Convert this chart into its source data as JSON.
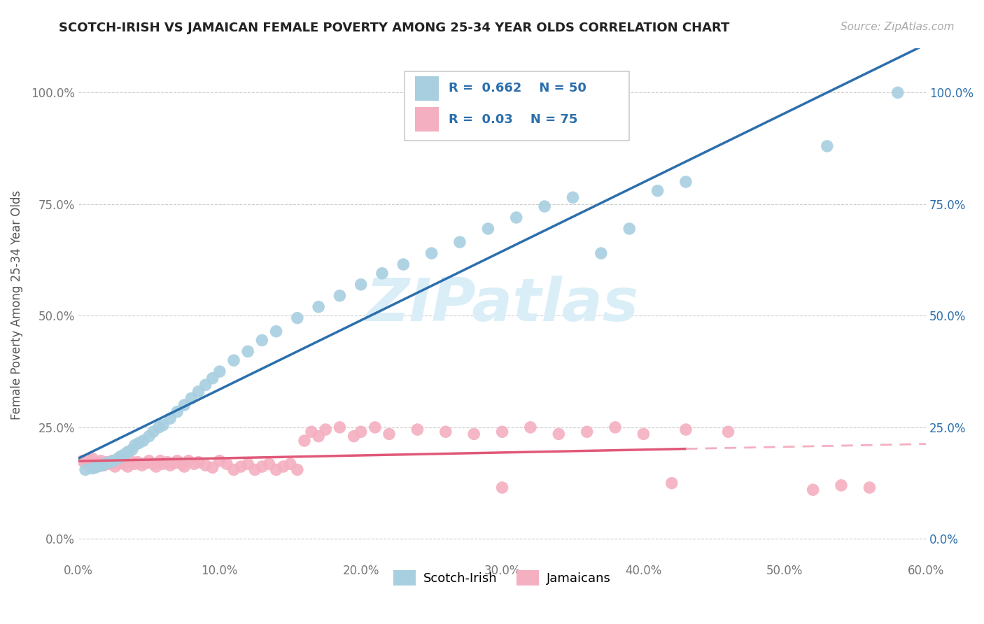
{
  "title": "SCOTCH-IRISH VS JAMAICAN FEMALE POVERTY AMONG 25-34 YEAR OLDS CORRELATION CHART",
  "source": "Source: ZipAtlas.com",
  "ylabel": "Female Poverty Among 25-34 Year Olds",
  "xlim": [
    0.0,
    0.6
  ],
  "ylim": [
    -0.05,
    1.1
  ],
  "xtick_labels": [
    "0.0%",
    "10.0%",
    "20.0%",
    "30.0%",
    "40.0%",
    "50.0%",
    "60.0%"
  ],
  "xtick_vals": [
    0.0,
    0.1,
    0.2,
    0.3,
    0.4,
    0.5,
    0.6
  ],
  "ytick_labels": [
    "0.0%",
    "25.0%",
    "50.0%",
    "75.0%",
    "100.0%"
  ],
  "ytick_vals": [
    0.0,
    0.25,
    0.5,
    0.75,
    1.0
  ],
  "scotch_irish_R": 0.662,
  "scotch_irish_N": 50,
  "jamaican_R": 0.03,
  "jamaican_N": 75,
  "scotch_irish_color": "#a8cfe0",
  "jamaican_color": "#f4afc0",
  "scotch_irish_line_color": "#2c6fac",
  "jamaican_line_solid_color": "#e05878",
  "jamaican_line_dash_color": "#f4afc0",
  "watermark_color": "#daeef8",
  "scotch_irish_x": [
    0.005,
    0.01,
    0.012,
    0.015,
    0.018,
    0.02,
    0.022,
    0.025,
    0.028,
    0.03,
    0.033,
    0.035,
    0.038,
    0.04,
    0.043,
    0.046,
    0.05,
    0.053,
    0.057,
    0.06,
    0.065,
    0.07,
    0.075,
    0.08,
    0.085,
    0.09,
    0.095,
    0.1,
    0.11,
    0.12,
    0.13,
    0.14,
    0.155,
    0.17,
    0.185,
    0.2,
    0.215,
    0.23,
    0.25,
    0.27,
    0.29,
    0.31,
    0.33,
    0.35,
    0.37,
    0.39,
    0.41,
    0.43,
    0.53,
    0.58
  ],
  "scotch_irish_y": [
    0.155,
    0.158,
    0.16,
    0.163,
    0.166,
    0.17,
    0.172,
    0.175,
    0.18,
    0.185,
    0.19,
    0.195,
    0.2,
    0.21,
    0.215,
    0.22,
    0.23,
    0.24,
    0.25,
    0.255,
    0.27,
    0.285,
    0.3,
    0.315,
    0.33,
    0.345,
    0.36,
    0.375,
    0.4,
    0.42,
    0.445,
    0.465,
    0.495,
    0.52,
    0.545,
    0.57,
    0.595,
    0.615,
    0.64,
    0.665,
    0.695,
    0.72,
    0.745,
    0.765,
    0.64,
    0.695,
    0.78,
    0.8,
    0.88,
    1.0
  ],
  "jamaican_x": [
    0.003,
    0.005,
    0.007,
    0.009,
    0.01,
    0.012,
    0.014,
    0.016,
    0.018,
    0.02,
    0.022,
    0.024,
    0.026,
    0.028,
    0.03,
    0.032,
    0.035,
    0.037,
    0.04,
    0.042,
    0.045,
    0.048,
    0.05,
    0.053,
    0.055,
    0.058,
    0.06,
    0.063,
    0.065,
    0.068,
    0.07,
    0.073,
    0.075,
    0.078,
    0.082,
    0.085,
    0.09,
    0.095,
    0.1,
    0.105,
    0.11,
    0.115,
    0.12,
    0.125,
    0.13,
    0.135,
    0.14,
    0.145,
    0.15,
    0.155,
    0.16,
    0.165,
    0.17,
    0.175,
    0.185,
    0.195,
    0.2,
    0.21,
    0.22,
    0.24,
    0.26,
    0.28,
    0.3,
    0.32,
    0.34,
    0.36,
    0.38,
    0.4,
    0.43,
    0.46,
    0.3,
    0.42,
    0.52,
    0.54,
    0.56
  ],
  "jamaican_y": [
    0.175,
    0.17,
    0.165,
    0.175,
    0.18,
    0.165,
    0.17,
    0.175,
    0.165,
    0.172,
    0.168,
    0.175,
    0.162,
    0.17,
    0.175,
    0.168,
    0.162,
    0.175,
    0.168,
    0.172,
    0.165,
    0.17,
    0.175,
    0.168,
    0.162,
    0.175,
    0.168,
    0.172,
    0.165,
    0.17,
    0.175,
    0.168,
    0.162,
    0.175,
    0.168,
    0.172,
    0.165,
    0.16,
    0.175,
    0.168,
    0.155,
    0.162,
    0.168,
    0.155,
    0.162,
    0.168,
    0.155,
    0.162,
    0.168,
    0.155,
    0.22,
    0.24,
    0.23,
    0.245,
    0.25,
    0.23,
    0.24,
    0.25,
    0.235,
    0.245,
    0.24,
    0.235,
    0.24,
    0.25,
    0.235,
    0.24,
    0.25,
    0.235,
    0.245,
    0.24,
    0.115,
    0.125,
    0.11,
    0.12,
    0.115
  ]
}
